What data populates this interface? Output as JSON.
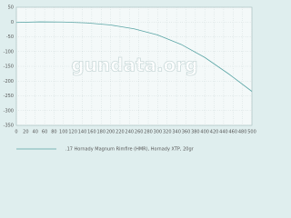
{
  "chart_data": {
    "type": "line",
    "watermark": "gundata.org",
    "x": [
      0,
      50,
      100,
      150,
      200,
      250,
      300,
      350,
      400,
      450,
      500
    ],
    "series": [
      {
        "name": ".17 Hornady Magnum Rimfire (HMR), Hornady XTP, 20gr",
        "color": "#5aa5a5",
        "values": [
          -1.5,
          0.5,
          0,
          -3,
          -10,
          -23,
          -44,
          -76,
          -120,
          -175,
          -235
        ]
      }
    ],
    "xlim": [
      0,
      500
    ],
    "xticks": [
      0,
      20,
      40,
      60,
      80,
      100,
      120,
      140,
      160,
      180,
      200,
      220,
      240,
      260,
      280,
      300,
      320,
      340,
      360,
      380,
      400,
      420,
      440,
      460,
      480,
      500
    ],
    "ylim": [
      -350,
      50
    ],
    "yticks": [
      50,
      0,
      -50,
      -100,
      -150,
      -200,
      -250,
      -300,
      -350
    ],
    "grid": true
  }
}
